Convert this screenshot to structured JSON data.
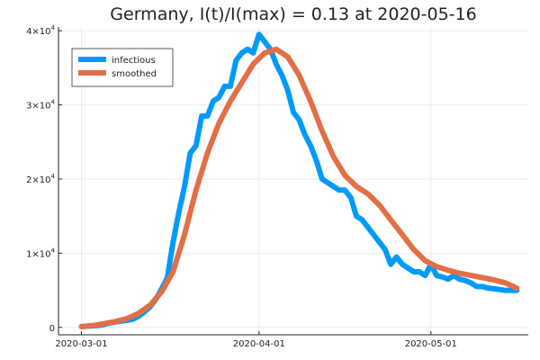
{
  "chart_data": {
    "type": "line",
    "title": "Germany,  I(t)/I(max) = 0.13 at 2020-05-16",
    "xlabel": "",
    "ylabel": "",
    "x_ticks": [
      "2020-03-01",
      "2020-04-01",
      "2020-05-01"
    ],
    "y_ticks": [
      {
        "value": 0,
        "mant": "0",
        "exp": ""
      },
      {
        "value": 10000,
        "mant": "1×10",
        "exp": "4"
      },
      {
        "value": 20000,
        "mant": "2×10",
        "exp": "4"
      },
      {
        "value": 30000,
        "mant": "3×10",
        "exp": "4"
      },
      {
        "value": 40000,
        "mant": "4×10",
        "exp": "4"
      }
    ],
    "ylim": [
      -1000,
      40500
    ],
    "xlim": [
      "2020-02-26",
      "2020-05-18"
    ],
    "grid": true,
    "legend_position": "top-left",
    "series": [
      {
        "name": "infectious",
        "color": "#009af9",
        "x": [
          "2020-03-01",
          "2020-03-02",
          "2020-03-03",
          "2020-03-04",
          "2020-03-05",
          "2020-03-06",
          "2020-03-07",
          "2020-03-08",
          "2020-03-09",
          "2020-03-10",
          "2020-03-11",
          "2020-03-12",
          "2020-03-13",
          "2020-03-14",
          "2020-03-15",
          "2020-03-16",
          "2020-03-17",
          "2020-03-18",
          "2020-03-19",
          "2020-03-20",
          "2020-03-21",
          "2020-03-22",
          "2020-03-23",
          "2020-03-24",
          "2020-03-25",
          "2020-03-26",
          "2020-03-27",
          "2020-03-28",
          "2020-03-29",
          "2020-03-30",
          "2020-03-31",
          "2020-04-01",
          "2020-04-02",
          "2020-04-03",
          "2020-04-04",
          "2020-04-05",
          "2020-04-06",
          "2020-04-07",
          "2020-04-08",
          "2020-04-09",
          "2020-04-10",
          "2020-04-11",
          "2020-04-12",
          "2020-04-13",
          "2020-04-14",
          "2020-04-15",
          "2020-04-16",
          "2020-04-17",
          "2020-04-18",
          "2020-04-19",
          "2020-04-20",
          "2020-04-21",
          "2020-04-22",
          "2020-04-23",
          "2020-04-24",
          "2020-04-25",
          "2020-04-26",
          "2020-04-27",
          "2020-04-28",
          "2020-04-29",
          "2020-04-30",
          "2020-05-01",
          "2020-05-02",
          "2020-05-03",
          "2020-05-04",
          "2020-05-05",
          "2020-05-06",
          "2020-05-07",
          "2020-05-08",
          "2020-05-09",
          "2020-05-10",
          "2020-05-11",
          "2020-05-12",
          "2020-05-13",
          "2020-05-14",
          "2020-05-15",
          "2020-05-16"
        ],
        "values": [
          100,
          150,
          200,
          280,
          400,
          600,
          750,
          850,
          950,
          1100,
          1500,
          2100,
          2800,
          3800,
          5200,
          6700,
          11500,
          15500,
          19000,
          23500,
          24500,
          28500,
          28500,
          30500,
          31000,
          32500,
          32500,
          36000,
          37000,
          37500,
          37000,
          39500,
          38500,
          37500,
          35500,
          34000,
          32000,
          29000,
          28000,
          26000,
          24500,
          22500,
          20000,
          19500,
          19000,
          18500,
          18500,
          17500,
          15000,
          14500,
          13500,
          12500,
          11500,
          10500,
          8500,
          9500,
          8500,
          8000,
          7500,
          7500,
          7000,
          8500,
          7000,
          6800,
          6500,
          7000,
          6500,
          6300,
          6000,
          5500,
          5500,
          5300,
          5200,
          5100,
          5000,
          5000,
          5000
        ]
      },
      {
        "name": "smoothed",
        "color": "#e26f46",
        "x": [
          "2020-03-01",
          "2020-03-03",
          "2020-03-05",
          "2020-03-07",
          "2020-03-09",
          "2020-03-11",
          "2020-03-13",
          "2020-03-15",
          "2020-03-17",
          "2020-03-19",
          "2020-03-21",
          "2020-03-23",
          "2020-03-25",
          "2020-03-27",
          "2020-03-29",
          "2020-03-31",
          "2020-04-02",
          "2020-04-04",
          "2020-04-06",
          "2020-04-08",
          "2020-04-10",
          "2020-04-12",
          "2020-04-14",
          "2020-04-16",
          "2020-04-18",
          "2020-04-20",
          "2020-04-22",
          "2020-04-24",
          "2020-04-26",
          "2020-04-28",
          "2020-04-30",
          "2020-05-02",
          "2020-05-04",
          "2020-05-06",
          "2020-05-08",
          "2020-05-10",
          "2020-05-12",
          "2020-05-14",
          "2020-05-16"
        ],
        "values": [
          100,
          250,
          500,
          800,
          1200,
          1900,
          3000,
          4800,
          7500,
          12500,
          18500,
          23500,
          27500,
          30500,
          33000,
          35500,
          37000,
          37500,
          36500,
          34000,
          30500,
          26500,
          23000,
          20500,
          19000,
          18000,
          16500,
          14500,
          12500,
          10500,
          9000,
          8200,
          7700,
          7300,
          7000,
          6700,
          6400,
          6000,
          5300
        ]
      }
    ]
  }
}
